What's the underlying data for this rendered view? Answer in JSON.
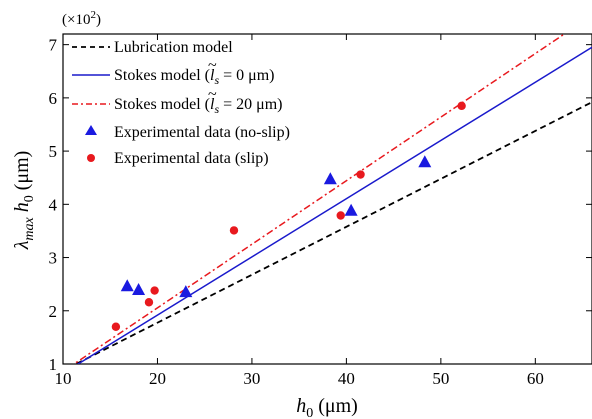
{
  "chart_data": {
    "type": "scatter",
    "title": "",
    "xlabel_main": "h",
    "xlabel_sub": "0",
    "xlabel_unit": " (μm)",
    "ylabel_main1": "λ",
    "ylabel_sub1": "max",
    "ylabel_main2": " h",
    "ylabel_sub2": "0",
    "ylabel_unit": " (μm)",
    "y_multiplier_prefix": "(×10",
    "y_multiplier_exp": "2",
    "y_multiplier_suffix": ")",
    "xlim": [
      10,
      66
    ],
    "ylim": [
      1,
      7.2
    ],
    "xticks": [
      10,
      20,
      30,
      40,
      50,
      60
    ],
    "yticks": [
      1,
      2,
      3,
      4,
      5,
      6,
      7
    ],
    "grid": false,
    "legend_position": "top-left",
    "series": [
      {
        "name": "Lubrication model",
        "kind": "line",
        "style": "dashed",
        "color": "#000000",
        "x": [
          10.5,
          66
        ],
        "y": [
          0.92,
          5.92
        ]
      },
      {
        "name_prefix": "Stokes model (",
        "name_sym": "l",
        "name_sub": "s",
        "name_suffix": " = 0 μm)",
        "kind": "line",
        "style": "solid",
        "color": "#1a1acc",
        "x": [
          10.5,
          66
        ],
        "y": [
          0.88,
          6.95
        ]
      },
      {
        "name_prefix": "Stokes model (",
        "name_sym": "l",
        "name_sub": "s",
        "name_suffix": " = 20 μm)",
        "kind": "line",
        "style": "dashdot",
        "color": "#e8191e",
        "x": [
          10.5,
          66
        ],
        "y": [
          0.92,
          7.55
        ]
      },
      {
        "name": "Experimental data (no-slip)",
        "kind": "scatter",
        "marker": "triangle",
        "color": "#1a1ae0",
        "x": [
          16.8,
          18.0,
          23.0,
          38.3,
          40.5,
          48.3
        ],
        "y": [
          2.46,
          2.39,
          2.35,
          4.47,
          3.88,
          4.79
        ]
      },
      {
        "name": "Experimental data (slip)",
        "kind": "scatter",
        "marker": "circle",
        "color": "#e8191e",
        "x": [
          15.6,
          19.1,
          19.7,
          28.1,
          39.4,
          41.5,
          52.2
        ],
        "y": [
          1.7,
          2.16,
          2.38,
          3.51,
          3.79,
          4.56,
          5.85
        ]
      }
    ]
  }
}
